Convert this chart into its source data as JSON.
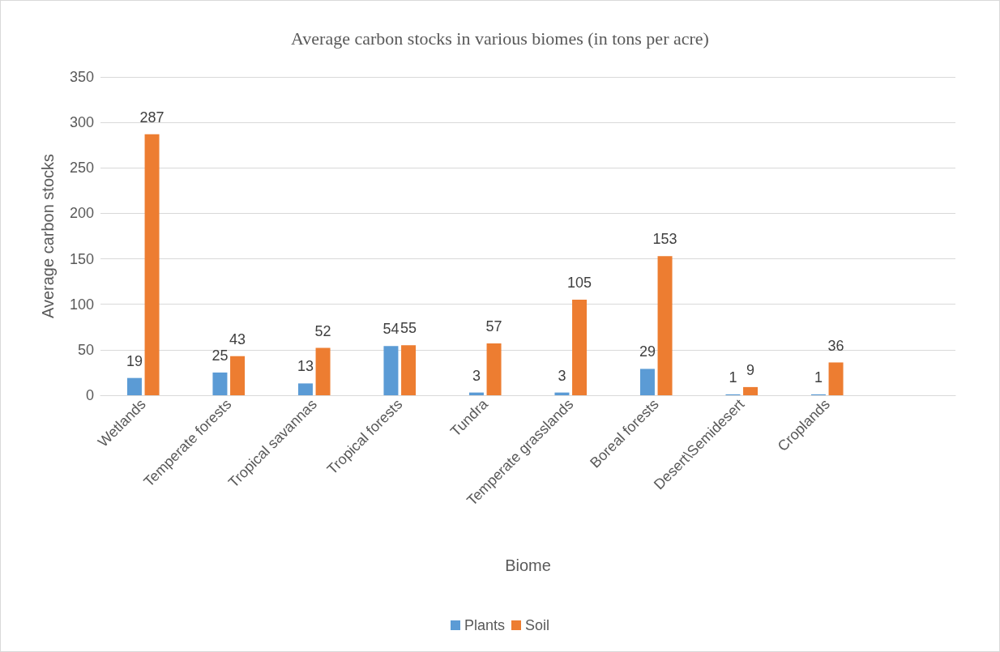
{
  "chart_data": {
    "type": "bar",
    "title": "Average carbon stocks in various biomes (in tons per acre)",
    "xlabel": "Biome",
    "ylabel": "Average carbon stocks",
    "categories": [
      "Wetlands",
      "Temperate forests",
      "Tropical savannas",
      "Tropical forests",
      "Tundra",
      "Temperate grasslands",
      "Boreal forests",
      "Desert\\Semidesert",
      "Croplands",
      null
    ],
    "series": [
      {
        "name": "Plants",
        "color": "#5b9bd5",
        "values": [
          19,
          25,
          13,
          54,
          3,
          3,
          29,
          1,
          1,
          null
        ]
      },
      {
        "name": "Soil",
        "color": "#ed7d31",
        "values": [
          287,
          43,
          52,
          55,
          57,
          105,
          153,
          9,
          36,
          null
        ]
      }
    ],
    "ylim": [
      0,
      350
    ],
    "yticks": [
      0,
      50,
      100,
      150,
      200,
      250,
      300,
      350
    ],
    "grid": "y",
    "legend": "bottom",
    "data_labels": true
  }
}
